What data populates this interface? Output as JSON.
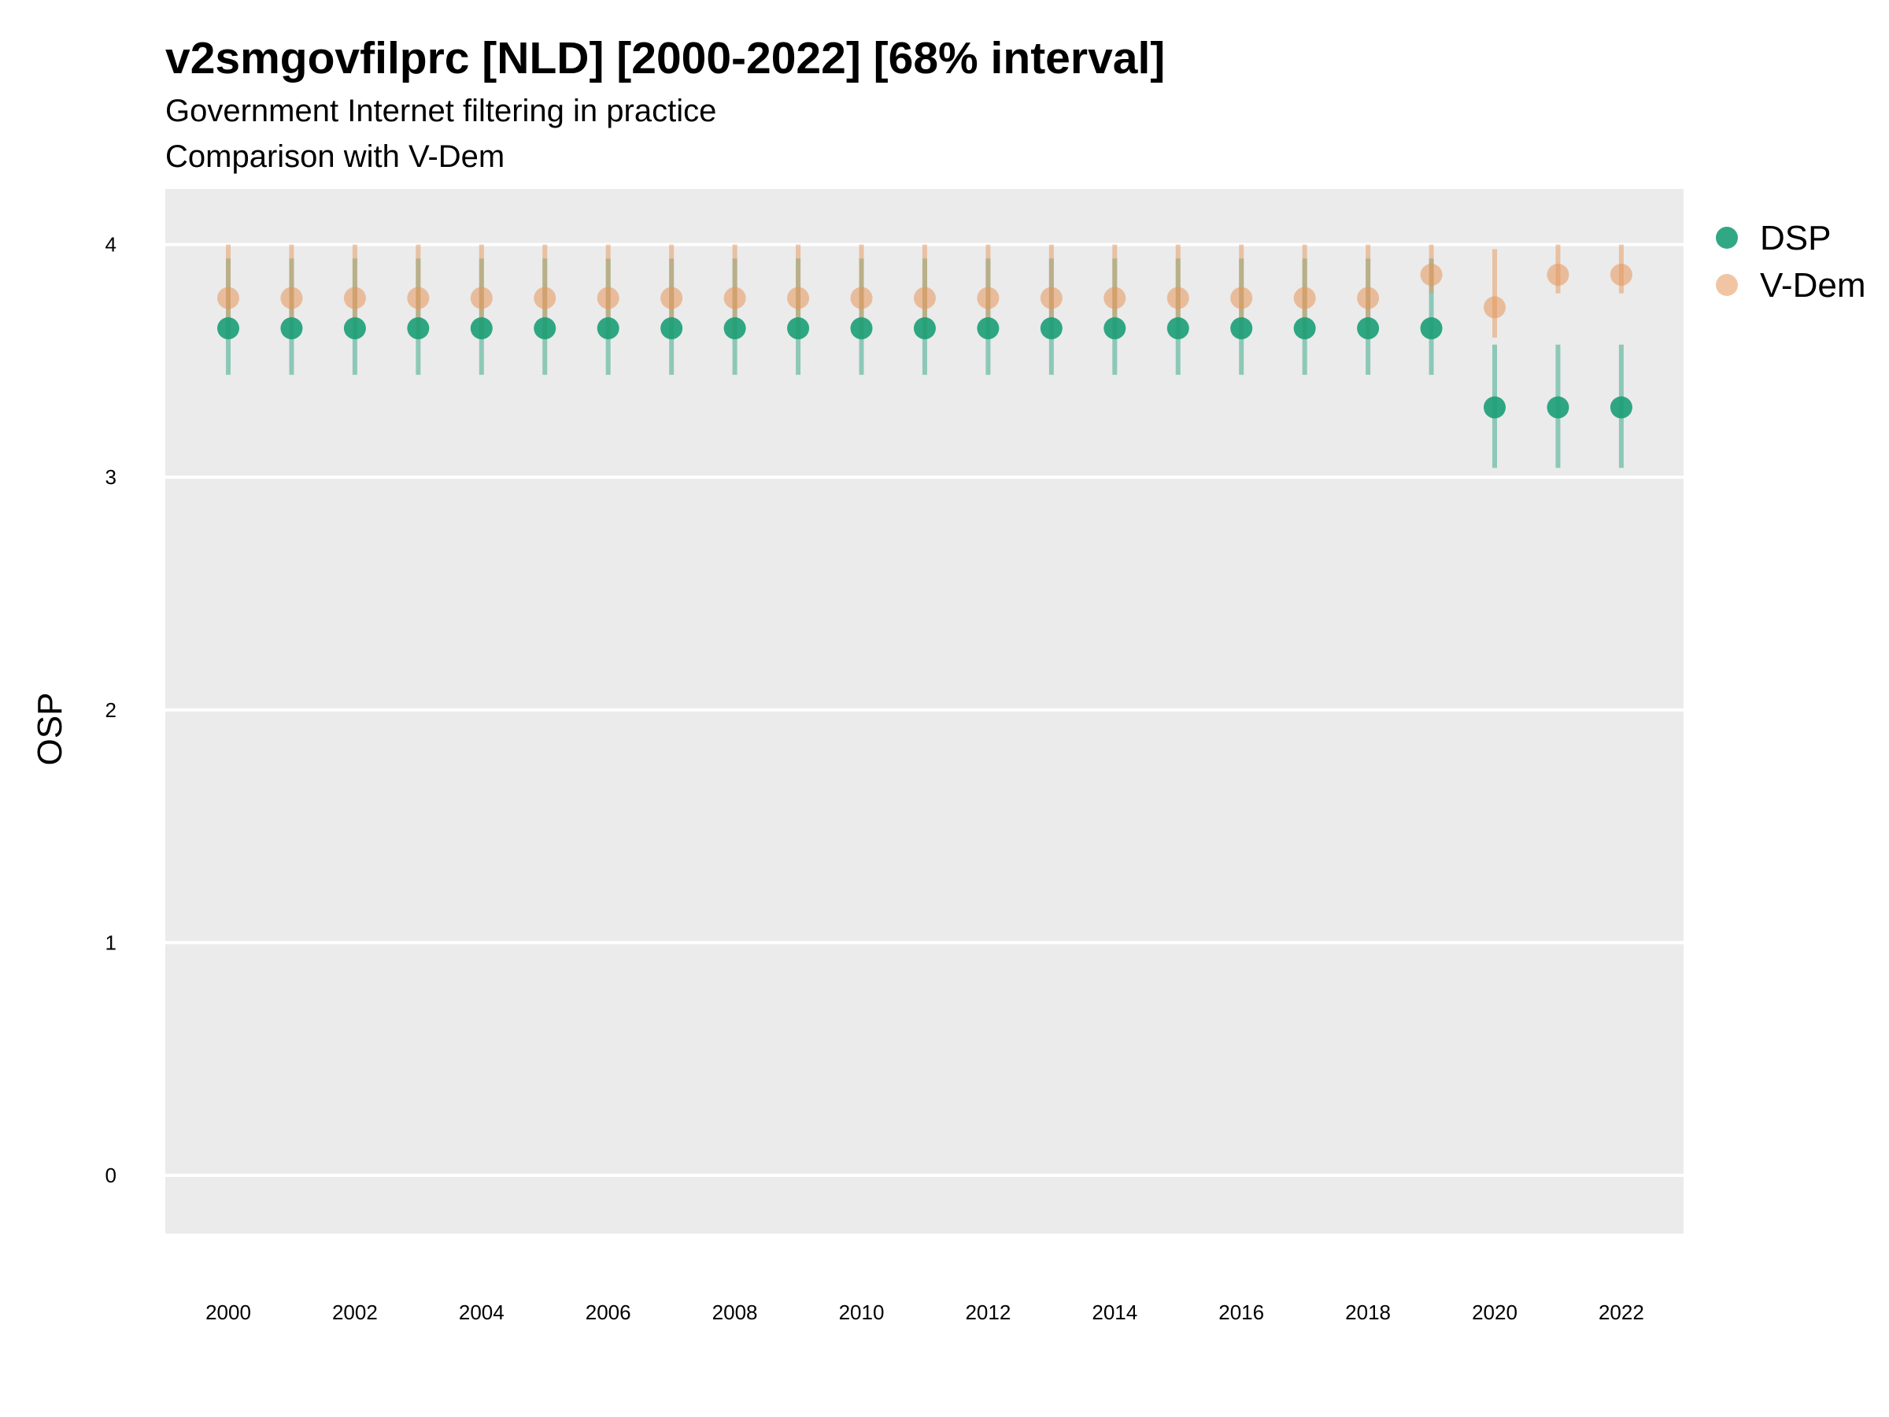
{
  "chart_data": {
    "type": "scatter",
    "title": "v2smgovfilprc [NLD] [2000-2022] [68% interval]",
    "subtitles": [
      "Government Internet filtering in practice",
      "Comparison with V-Dem"
    ],
    "xlabel": "",
    "ylabel": "OSP",
    "ylim": [
      -0.25,
      4.25
    ],
    "xlim": [
      1999,
      2023
    ],
    "yticks": [
      "0",
      "1",
      "2",
      "3",
      "4"
    ],
    "xticks": [
      "2000",
      "2002",
      "2004",
      "2006",
      "2008",
      "2010",
      "2012",
      "2014",
      "2016",
      "2018",
      "2020",
      "2022"
    ],
    "grid": true,
    "legend_position": "right",
    "x": [
      2000,
      2001,
      2002,
      2003,
      2004,
      2005,
      2006,
      2007,
      2008,
      2009,
      2010,
      2011,
      2012,
      2013,
      2014,
      2015,
      2016,
      2017,
      2018,
      2019,
      2020,
      2021,
      2022
    ],
    "series": [
      {
        "name": "DSP",
        "color": "#1b9e77",
        "values": [
          3.64,
          3.64,
          3.64,
          3.64,
          3.64,
          3.64,
          3.64,
          3.64,
          3.64,
          3.64,
          3.64,
          3.64,
          3.64,
          3.64,
          3.64,
          3.64,
          3.64,
          3.64,
          3.64,
          3.64,
          3.3,
          3.3,
          3.3
        ],
        "lower": [
          3.44,
          3.44,
          3.44,
          3.44,
          3.44,
          3.44,
          3.44,
          3.44,
          3.44,
          3.44,
          3.44,
          3.44,
          3.44,
          3.44,
          3.44,
          3.44,
          3.44,
          3.44,
          3.44,
          3.44,
          3.04,
          3.04,
          3.04
        ],
        "upper": [
          3.94,
          3.94,
          3.94,
          3.94,
          3.94,
          3.94,
          3.94,
          3.94,
          3.94,
          3.94,
          3.94,
          3.94,
          3.94,
          3.94,
          3.94,
          3.94,
          3.94,
          3.94,
          3.94,
          3.94,
          3.57,
          3.57,
          3.57
        ]
      },
      {
        "name": "V-Dem",
        "color": "#e6955a",
        "values": [
          3.77,
          3.77,
          3.77,
          3.77,
          3.77,
          3.77,
          3.77,
          3.77,
          3.77,
          3.77,
          3.77,
          3.77,
          3.77,
          3.77,
          3.77,
          3.77,
          3.77,
          3.77,
          3.77,
          3.87,
          3.73,
          3.87,
          3.87
        ],
        "lower": [
          3.6,
          3.6,
          3.6,
          3.6,
          3.6,
          3.6,
          3.6,
          3.6,
          3.6,
          3.6,
          3.6,
          3.6,
          3.6,
          3.6,
          3.6,
          3.6,
          3.6,
          3.6,
          3.6,
          3.79,
          3.6,
          3.79,
          3.79
        ],
        "upper": [
          4.0,
          4.0,
          4.0,
          4.0,
          4.0,
          4.0,
          4.0,
          4.0,
          4.0,
          4.0,
          4.0,
          4.0,
          4.0,
          4.0,
          4.0,
          4.0,
          4.0,
          4.0,
          4.0,
          4.0,
          3.98,
          4.0,
          4.0
        ]
      }
    ]
  }
}
